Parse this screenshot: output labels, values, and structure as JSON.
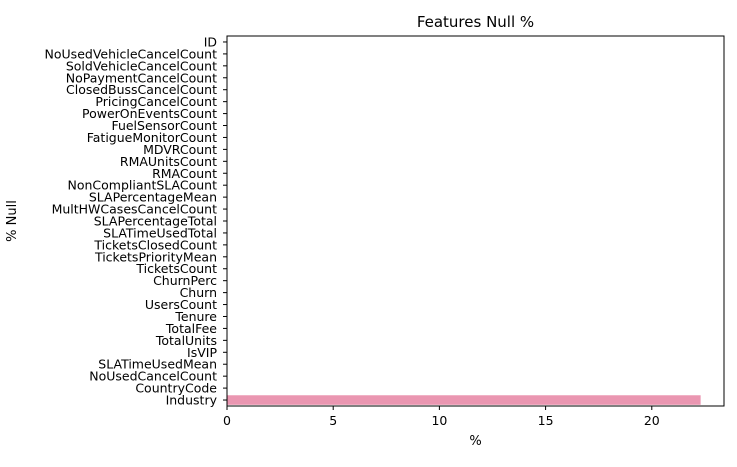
{
  "chart_data": {
    "type": "bar",
    "orientation": "horizontal",
    "title": "Features Null %",
    "xlabel": "%",
    "ylabel": "% Null",
    "xlim": [
      0,
      23.4
    ],
    "xticks": [
      0,
      5,
      10,
      15,
      20
    ],
    "grid": false,
    "categories": [
      "ID",
      "NoUsedVehicleCancelCount",
      "SoldVehicleCancelCount",
      "NoPaymentCancelCount",
      "ClosedBussCancelCount",
      "PricingCancelCount",
      "PowerOnEventsCount",
      "FuelSensorCount",
      "FatigueMonitorCount",
      "MDVRCount",
      "RMAUnitsCount",
      "RMACount",
      "NonCompliantSLACount",
      "SLAPercentageMean",
      "MultHWCasesCancelCount",
      "SLAPercentageTotal",
      "SLATimeUsedTotal",
      "TicketsClosedCount",
      "TicketsPriorityMean",
      "TicketsCount",
      "ChurnPerc",
      "Churn",
      "UsersCount",
      "Tenure",
      "TotalFee",
      "TotalUnits",
      "IsVIP",
      "SLATimeUsedMean",
      "NoUsedCancelCount",
      "CountryCode",
      "Industry"
    ],
    "values": [
      0,
      0,
      0,
      0,
      0,
      0,
      0,
      0,
      0,
      0,
      0,
      0,
      0,
      0,
      0,
      0,
      0,
      0,
      0,
      0,
      0,
      0,
      0,
      0,
      0,
      0,
      0,
      0,
      0,
      0,
      22.3
    ],
    "bar_color": "#ea96b1"
  }
}
